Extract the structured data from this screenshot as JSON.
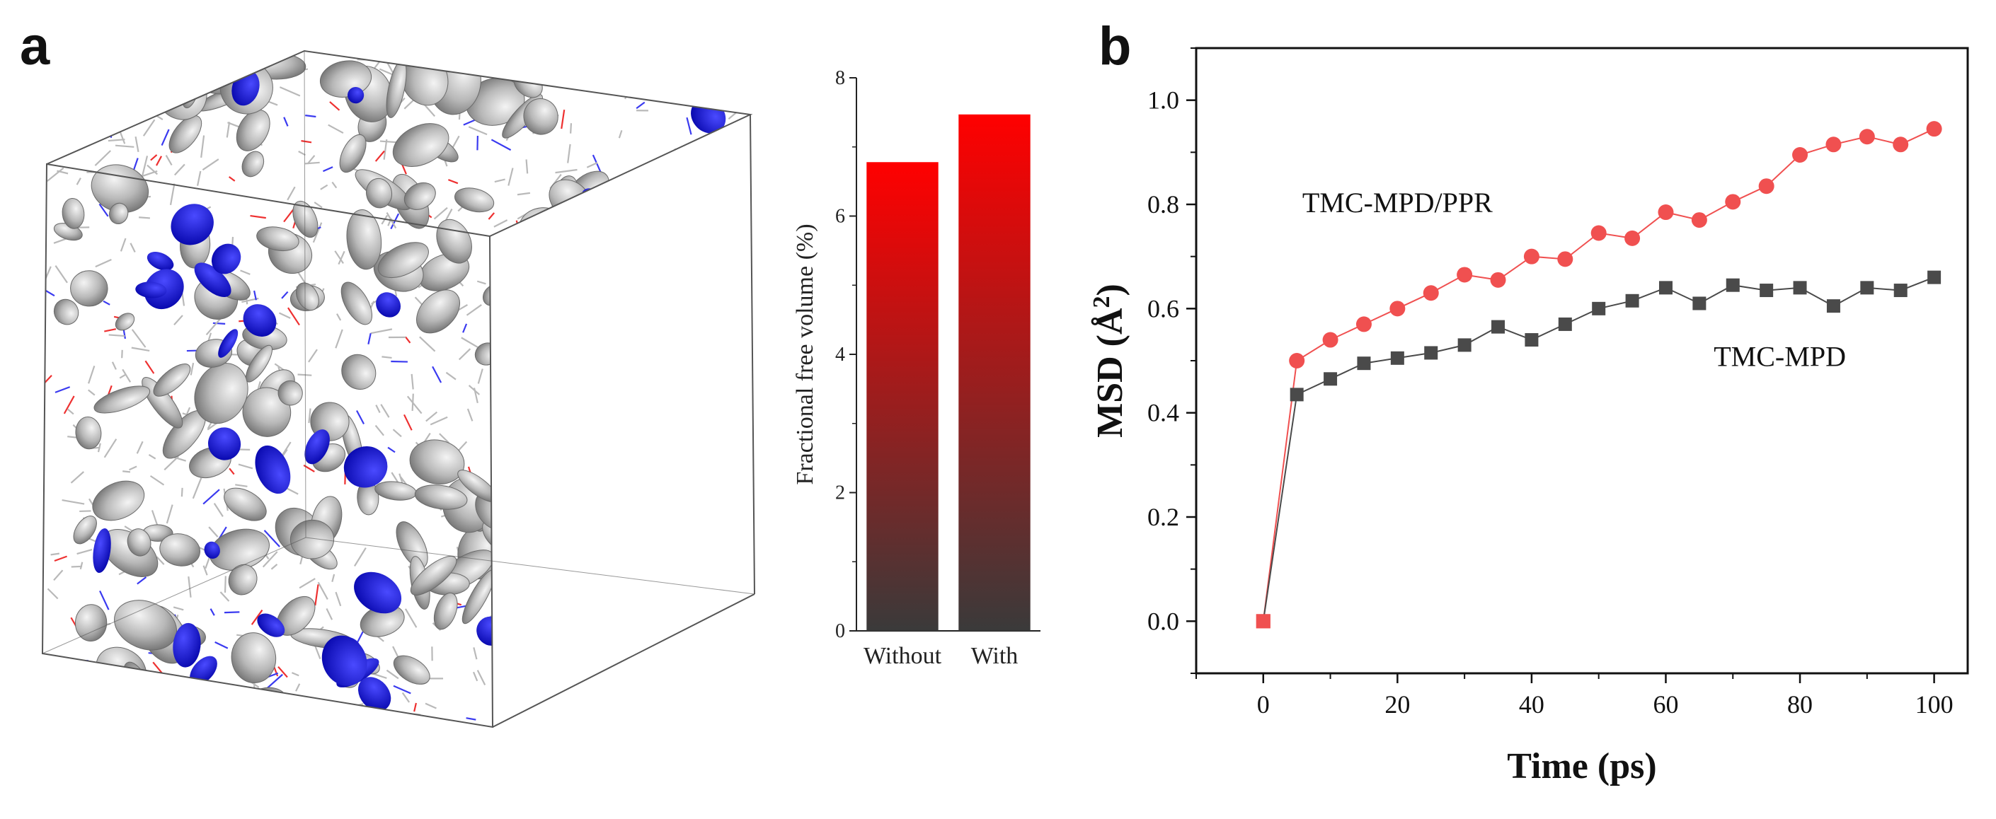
{
  "panels": {
    "a": "a",
    "b": "b"
  },
  "colors": {
    "void_blue": "#1212ee",
    "void_gray": "#9a9a9a",
    "bar_top": "#ff0000",
    "bar_bottom": "#3a3a3a",
    "series_red": "#f05050",
    "series_gray": "#4a4a4a"
  },
  "chart_data": [
    {
      "type": "bar",
      "categories": [
        "Without",
        "With"
      ],
      "values": [
        6.78,
        7.47
      ],
      "title": "",
      "xlabel": "",
      "ylabel": "Fractional free volume (%)",
      "ylim": [
        0,
        8
      ],
      "yticks": [
        0,
        2,
        4,
        6,
        8
      ]
    },
    {
      "type": "line",
      "title": "",
      "xlabel": "Time (ps)",
      "ylabel_main": "MSD (",
      "ylabel_unit": "Å",
      "ylabel_sup": "2",
      "ylabel_end": ")",
      "xlim": [
        -10,
        105
      ],
      "ylim": [
        -0.1,
        1.1
      ],
      "xticks": [
        0,
        20,
        40,
        60,
        80,
        100
      ],
      "yticks": [
        "0.0",
        "0.2",
        "0.4",
        "0.6",
        "0.8",
        "1.0"
      ],
      "x": [
        0,
        5,
        10,
        15,
        20,
        25,
        30,
        35,
        40,
        45,
        50,
        55,
        60,
        65,
        70,
        75,
        80,
        85,
        90,
        95,
        100
      ],
      "series": [
        {
          "name": "TMC-MPD/PPR",
          "marker": "circle",
          "values": [
            0.0,
            0.5,
            0.54,
            0.57,
            0.6,
            0.63,
            0.665,
            0.655,
            0.7,
            0.695,
            0.745,
            0.735,
            0.785,
            0.77,
            0.805,
            0.835,
            0.895,
            0.915,
            0.93,
            0.915,
            0.945
          ]
        },
        {
          "name": "TMC-MPD",
          "marker": "square",
          "values": [
            0.0,
            0.435,
            0.465,
            0.495,
            0.505,
            0.515,
            0.53,
            0.565,
            0.54,
            0.57,
            0.6,
            0.615,
            0.64,
            0.61,
            0.645,
            0.635,
            0.64,
            0.605,
            0.64,
            0.635,
            0.66
          ]
        }
      ]
    }
  ]
}
